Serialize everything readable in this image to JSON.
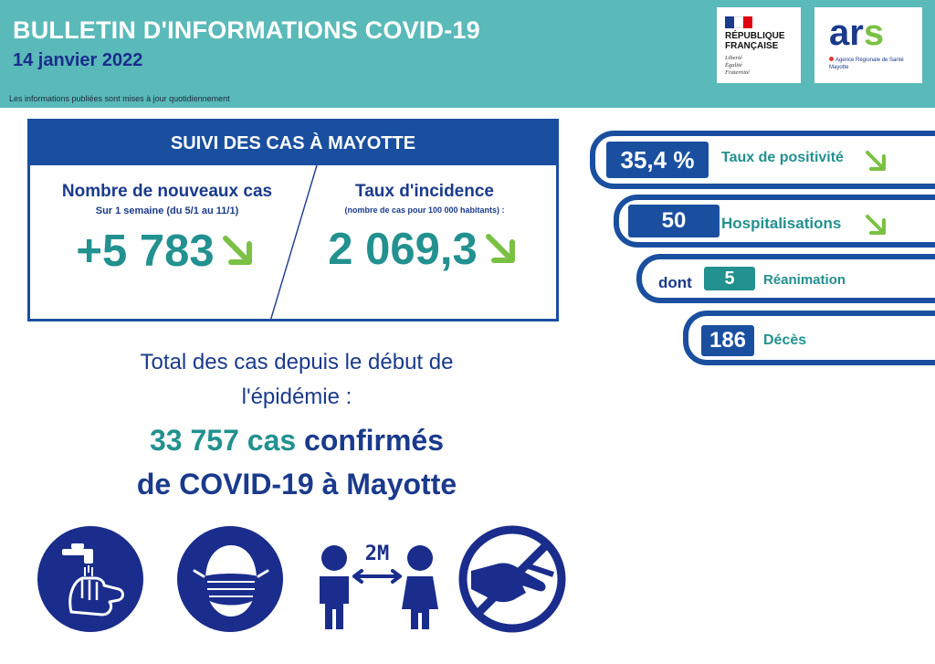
{
  "header": {
    "title": "BULLETIN D'INFORMATIONS COVID-19",
    "date": "14 janvier 2022",
    "note": "Les informations publiées sont mises à jour quotidiennement"
  },
  "logos": {
    "republique": {
      "name_line1": "RÉPUBLIQUE",
      "name_line2": "FRANÇAISE",
      "motto1": "Liberté",
      "motto2": "Égalité",
      "motto3": "Fraternité"
    },
    "ars": {
      "wordmark_a": "ar",
      "wordmark_s": "s",
      "subtitle": "Agence Régionale de Santé",
      "region": "Mayotte"
    }
  },
  "panel": {
    "title": "SUIVI DES CAS À MAYOTTE",
    "left": {
      "heading": "Nombre de nouveaux cas",
      "subheading": "Sur 1 semaine (du 5/1 au 11/1)",
      "value": "+5 783",
      "trend_icon": "arrow-down-right-icon"
    },
    "right": {
      "heading": "Taux d'incidence",
      "subheading": "(nombre de cas pour 100 000 habitants) :",
      "value": "2 069,3",
      "trend_icon": "arrow-down-right-icon"
    }
  },
  "total": {
    "line1": "Total des cas depuis le début de",
    "line2": "l'épidémie :",
    "count": "33 757 cas",
    "confirmed_word": " confirmés",
    "line4": "de COVID-19 à Mayotte"
  },
  "stats": [
    {
      "value": "35,4 %",
      "label": "Taux de positivité",
      "trend_icon": "arrow-down-right-icon"
    },
    {
      "value": "50",
      "label": "Hospitalisations",
      "trend_icon": "arrow-down-right-icon"
    },
    {
      "prefix": "dont",
      "value": "5",
      "label": "Réanimation"
    },
    {
      "value": "186",
      "label": "Décès"
    }
  ],
  "icons": [
    {
      "name": "hand-washing-icon"
    },
    {
      "name": "face-mask-icon"
    },
    {
      "name": "social-distancing-icon",
      "text": "2M"
    },
    {
      "name": "no-handshake-icon"
    }
  ],
  "colors": {
    "header_bg": "#5ab9b9",
    "primary_blue": "#1a4fa0",
    "dark_blue": "#1a3a8c",
    "teal": "#22918f",
    "arrow_green": "#7ac143",
    "icon_blue": "#1a2d8c"
  }
}
